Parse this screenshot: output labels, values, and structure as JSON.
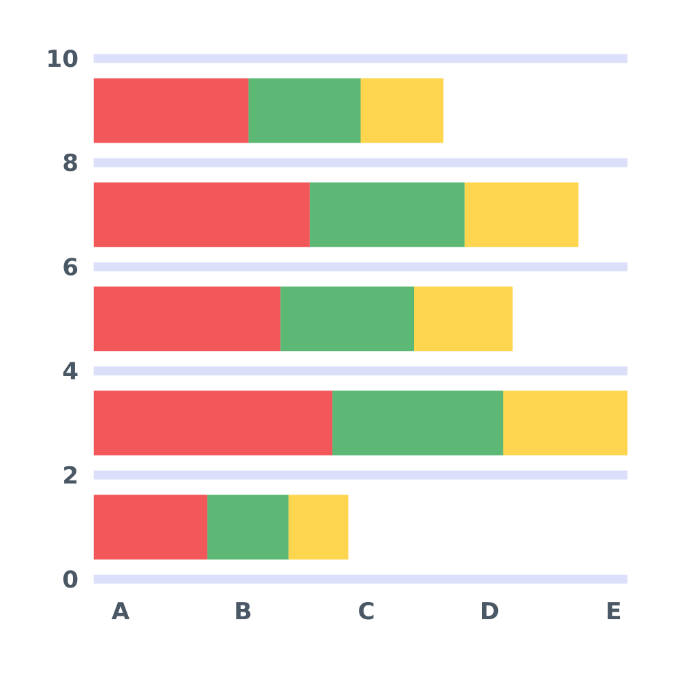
{
  "chart_data": {
    "type": "bar",
    "orientation": "horizontal",
    "stacked": true,
    "title": "",
    "xlabel": "",
    "ylabel": "",
    "y_ticks": [
      "0",
      "2",
      "4",
      "6",
      "8",
      "10"
    ],
    "x_ticks": [
      "A",
      "B",
      "C",
      "D",
      "E"
    ],
    "ylim": [
      0,
      10
    ],
    "xlim": [
      0,
      100
    ],
    "grid": true,
    "legend": "none",
    "bars": [
      {
        "y_center": 9.0,
        "segments": [
          29,
          21,
          15.5
        ]
      },
      {
        "y_center": 7.0,
        "segments": [
          40.5,
          29,
          21.3
        ]
      },
      {
        "y_center": 5.0,
        "segments": [
          35,
          25,
          18.5
        ]
      },
      {
        "y_center": 3.0,
        "segments": [
          44.7,
          32,
          23.3
        ]
      },
      {
        "y_center": 1.0,
        "segments": [
          21.3,
          15.2,
          11.2
        ]
      }
    ],
    "colors": {
      "segments": [
        "#f2575a",
        "#5cb874",
        "#fdd54e"
      ],
      "grid": "#dcdff9",
      "tick_text": "#4a5866"
    }
  }
}
